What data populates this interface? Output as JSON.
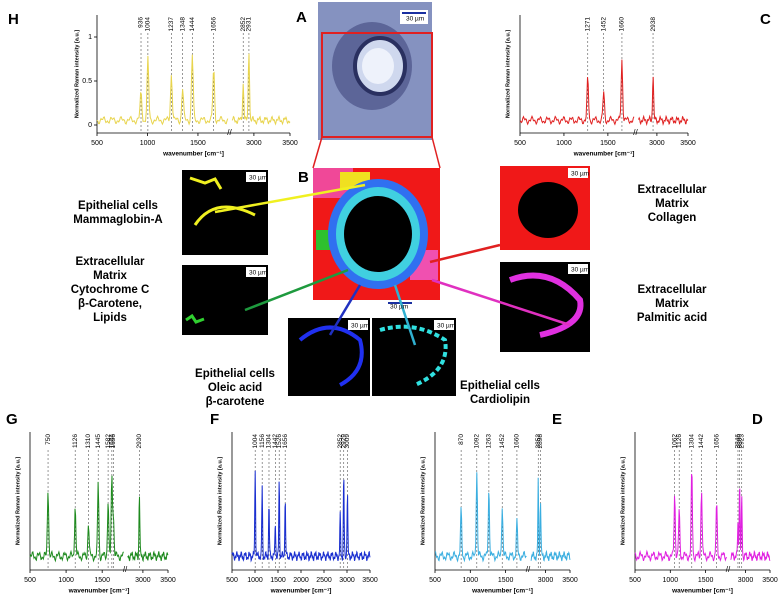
{
  "panels": [
    {
      "letter": "H",
      "color": "#e8d44d",
      "peaks": [
        936,
        1004,
        1237,
        1348,
        1444,
        1656,
        2852,
        2931
      ],
      "xticks": [
        500,
        1000,
        1500,
        3000,
        3500
      ],
      "yticks": [
        0,
        0.5,
        1
      ],
      "axis_break": [
        1800,
        2700
      ],
      "xlabel": "wavenumber [cm⁻¹]",
      "ylabel": "Normalized Raman intensity [a.u.]"
    },
    {
      "letter": "C",
      "color": "#e02020",
      "peaks": [
        1271,
        1452,
        1660,
        2938
      ],
      "xticks": [
        500,
        1000,
        1500,
        3000,
        3500
      ],
      "axis_break": [
        1800,
        2700
      ],
      "xlabel": "wavenumber [cm⁻¹]",
      "ylabel": "Normalized Raman intensity [a.u.]"
    },
    {
      "letter": "G",
      "color": "#1e8a1e",
      "peaks": [
        750,
        1126,
        1310,
        1445,
        1582,
        1656,
        1634,
        2930
      ],
      "xticks": [
        500,
        1000,
        1500,
        3000,
        3500
      ],
      "axis_break": [
        1800,
        2700
      ],
      "xlabel": "wavenumber [cm⁻¹]",
      "ylabel": "Normalized Raman intensity [a.u.]"
    },
    {
      "letter": "F",
      "color": "#1a2fd0",
      "peaks": [
        1004,
        1156,
        1304,
        1442,
        1526,
        1656,
        2852,
        2929,
        3009
      ],
      "xticks": [
        500,
        1000,
        1500,
        2000,
        2500,
        3000,
        3500
      ],
      "xlabel": "wavenumber [cm⁻¹]",
      "ylabel": "Normalized Raman intensity [a.u.]"
    },
    {
      "letter": "E",
      "color": "#3aaee0",
      "peaks": [
        870,
        1092,
        1263,
        1452,
        1660,
        2852,
        2898
      ],
      "xticks": [
        500,
        1000,
        1500,
        3000,
        3500
      ],
      "axis_break": [
        1800,
        2700
      ],
      "xlabel": "wavenumber [cm⁻¹]",
      "ylabel": "Normalized Raman intensity [a.u.]"
    },
    {
      "letter": "D",
      "color": "#e020e0",
      "peaks": [
        1062,
        1126,
        1304,
        1442,
        1656,
        2846,
        2880,
        2923
      ],
      "xticks": [
        500,
        1000,
        1500,
        3000,
        3500
      ],
      "axis_break": [
        1800,
        2700
      ],
      "xlabel": "wavenumber [cm⁻¹]",
      "ylabel": "Normalized Raman intensity [a.u.]"
    }
  ],
  "images": {
    "a": {
      "letter": "A",
      "scale": "30 µm"
    },
    "b": {
      "letter": "B",
      "scale": "30 µm"
    },
    "yellow": {
      "scale": "30 µm"
    },
    "green": {
      "scale": "30 µm"
    },
    "blue": {
      "scale": "30 µm"
    },
    "cyan": {
      "scale": "30 µm"
    },
    "red": {
      "scale": "30 µm"
    },
    "magenta": {
      "scale": "30 µm"
    }
  },
  "labels": {
    "yellow": [
      "Epithelial cells",
      "Mammaglobin-A"
    ],
    "green": [
      "Extracellular",
      "Matrix",
      "Cytochrome C",
      "β-Carotene,",
      "Lipids"
    ],
    "blue": [
      "Epithelial cells",
      "Oleic acid",
      "β-carotene"
    ],
    "cyan": [
      "Epithelial cells",
      "Cardiolipin"
    ],
    "red": [
      "Extracellular",
      "Matrix",
      "Collagen"
    ],
    "magenta": [
      "Extracellular",
      "Matrix",
      "Palmitic acid"
    ]
  }
}
